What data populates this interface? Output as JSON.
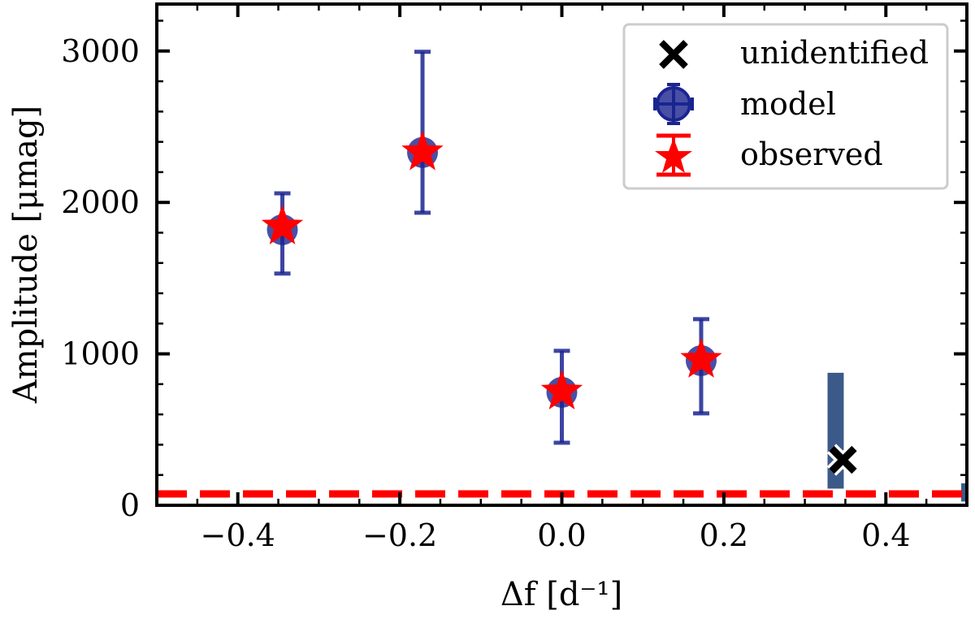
{
  "chart_data": {
    "type": "scatter",
    "title": "",
    "xlabel": "Δf [d⁻¹]",
    "ylabel": "Amplitude [μmag]",
    "xlim": [
      -0.5,
      0.5
    ],
    "ylim": [
      0,
      3310
    ],
    "xticks": [
      -0.4,
      -0.2,
      0.0,
      0.2,
      0.4
    ],
    "xtick_labels": [
      "−0.4",
      "−0.2",
      "0.0",
      "0.2",
      "0.4"
    ],
    "yticks": [
      0,
      1000,
      2000,
      3000
    ],
    "ytick_labels": [
      "0",
      "1000",
      "2000",
      "3000"
    ],
    "grid": false,
    "legend": {
      "placement": "top-right",
      "entries": [
        "unidentified",
        "model",
        "observed"
      ]
    },
    "series": [
      {
        "name": "model",
        "marker": "circle-errorbar",
        "color": "#1a2490",
        "x": [
          -0.345,
          -0.172,
          0.0,
          0.172
        ],
        "y": [
          1820,
          2330,
          746,
          955
        ],
        "yerr_low": [
          1530,
          1932,
          413,
          607
        ],
        "yerr_high": [
          2060,
          2995,
          1020,
          1229
        ]
      },
      {
        "name": "observed",
        "marker": "star",
        "color": "#ff0000",
        "x": [
          -0.345,
          -0.172,
          0.0,
          0.172
        ],
        "y": [
          1840,
          2330,
          750,
          960
        ]
      },
      {
        "name": "unidentified",
        "marker": "x",
        "color": "#000000",
        "x": [
          0.347
        ],
        "y": [
          300
        ]
      }
    ],
    "bars": {
      "color": "#3b5a8a",
      "items": [
        {
          "x": 0.338,
          "width": 0.02,
          "bottom": 110,
          "top": 875
        },
        {
          "x": 0.497,
          "width": 0.008,
          "bottom": 25,
          "top": 145
        }
      ]
    },
    "threshold": {
      "y": 75,
      "color": "#ff0000",
      "style": "dashed"
    }
  }
}
